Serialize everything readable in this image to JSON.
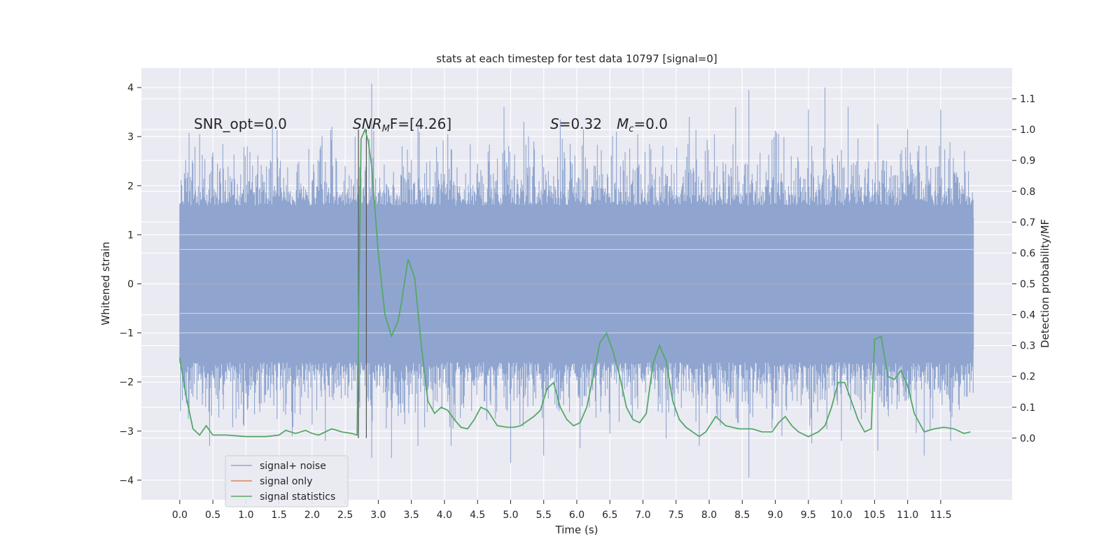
{
  "chart_data": {
    "type": "line",
    "title": "stats at each timestep for test data 10797 [signal=0]",
    "xlabel": "Time (s)",
    "ylabel": "Whitened strain",
    "y2label": "Detection probability/MF",
    "xlim": [
      -0.58,
      12.58
    ],
    "ylim": [
      -4.4,
      4.4
    ],
    "y2lim": [
      -0.2,
      1.2
    ],
    "xticks": [
      "0.0",
      "0.5",
      "1.0",
      "1.5",
      "2.0",
      "2.5",
      "3.0",
      "3.5",
      "4.0",
      "4.5",
      "5.0",
      "5.5",
      "6.0",
      "6.5",
      "7.0",
      "7.5",
      "8.0",
      "8.5",
      "9.0",
      "9.5",
      "10.0",
      "10.5",
      "11.0",
      "11.5"
    ],
    "yticks": [
      "4",
      "3",
      "2",
      "1",
      "0",
      "−1",
      "−2",
      "−3",
      "−4"
    ],
    "y2ticks": [
      "1.1",
      "1.0",
      "0.9",
      "0.8",
      "0.7",
      "0.6",
      "0.5",
      "0.4",
      "0.3",
      "0.2",
      "0.1",
      "0.0"
    ],
    "grid": true,
    "annotations": {
      "snr_opt": "SNR_opt=0.0",
      "snr_mf_main": "SNR",
      "snr_mf_sub": "M",
      "snr_mf_rest": "F=[4.26]",
      "s_main": "S",
      "s_rest": "=0.32",
      "mc_main": "M",
      "mc_sub": "c",
      "mc_rest": "=0.0"
    },
    "markers_x": [
      2.7,
      2.82
    ],
    "series": [
      {
        "name": "signal+ noise",
        "color": "#8fa5cf",
        "noise_duration": 12.0,
        "envelope": [
          1.35,
          -1.35
        ],
        "peaks": [
          [
            0.3,
            3.05
          ],
          [
            0.65,
            2.85
          ],
          [
            1.4,
            3.3
          ],
          [
            1.95,
            2.75
          ],
          [
            2.3,
            3.2
          ],
          [
            2.65,
            3.0
          ],
          [
            2.9,
            4.08
          ],
          [
            3.6,
            3.2
          ],
          [
            4.05,
            3.05
          ],
          [
            4.9,
            3.6
          ],
          [
            5.2,
            3.3
          ],
          [
            5.75,
            3.35
          ],
          [
            6.1,
            3.15
          ],
          [
            6.6,
            3.1
          ],
          [
            7.1,
            2.85
          ],
          [
            7.7,
            3.4
          ],
          [
            8.4,
            3.6
          ],
          [
            8.6,
            3.95
          ],
          [
            9.05,
            3.05
          ],
          [
            9.5,
            3.55
          ],
          [
            9.75,
            4.0
          ],
          [
            10.1,
            3.6
          ],
          [
            10.55,
            3.25
          ],
          [
            11.0,
            3.15
          ],
          [
            11.5,
            3.55
          ]
        ],
        "troughs": [
          [
            0.2,
            -2.3
          ],
          [
            0.45,
            -3.3
          ],
          [
            1.7,
            -3.1
          ],
          [
            2.2,
            -3.2
          ],
          [
            2.9,
            -3.55
          ],
          [
            3.2,
            -3.55
          ],
          [
            3.6,
            -3.3
          ],
          [
            4.1,
            -3.3
          ],
          [
            5.0,
            -3.65
          ],
          [
            5.5,
            -3.5
          ],
          [
            6.05,
            -3.35
          ],
          [
            6.5,
            -3.05
          ],
          [
            7.35,
            -3.15
          ],
          [
            7.85,
            -3.3
          ],
          [
            8.6,
            -3.95
          ],
          [
            9.1,
            -3.1
          ],
          [
            9.55,
            -3.25
          ],
          [
            10.0,
            -3.2
          ],
          [
            10.55,
            -3.4
          ],
          [
            11.25,
            -3.5
          ],
          [
            11.65,
            -3.2
          ]
        ]
      },
      {
        "name": "signal only",
        "color": "#dd8452",
        "x": [
          0,
          12
        ],
        "y": [
          0,
          0
        ]
      },
      {
        "name": "signal statistics",
        "color": "#55a868",
        "axis": "right",
        "x": [
          0.0,
          0.1,
          0.2,
          0.3,
          0.4,
          0.5,
          0.7,
          1.0,
          1.3,
          1.5,
          1.6,
          1.75,
          1.9,
          2.0,
          2.1,
          2.2,
          2.3,
          2.45,
          2.6,
          2.68,
          2.74,
          2.8,
          2.85,
          2.9,
          3.0,
          3.1,
          3.2,
          3.3,
          3.35,
          3.45,
          3.55,
          3.65,
          3.75,
          3.85,
          3.95,
          4.05,
          4.15,
          4.25,
          4.35,
          4.45,
          4.55,
          4.65,
          4.8,
          4.95,
          5.05,
          5.15,
          5.25,
          5.35,
          5.45,
          5.55,
          5.65,
          5.75,
          5.85,
          5.95,
          6.05,
          6.15,
          6.25,
          6.35,
          6.45,
          6.55,
          6.65,
          6.75,
          6.85,
          6.95,
          7.05,
          7.15,
          7.25,
          7.35,
          7.45,
          7.55,
          7.65,
          7.75,
          7.85,
          7.95,
          8.1,
          8.25,
          8.45,
          8.65,
          8.8,
          8.95,
          9.05,
          9.15,
          9.25,
          9.35,
          9.5,
          9.65,
          9.75,
          9.85,
          9.95,
          10.05,
          10.15,
          10.25,
          10.35,
          10.45,
          10.5,
          10.6,
          10.7,
          10.8,
          10.9,
          11.0,
          11.1,
          11.25,
          11.4,
          11.55,
          11.7,
          11.85,
          11.95
        ],
        "y": [
          0.26,
          0.13,
          0.03,
          0.01,
          0.04,
          0.01,
          0.01,
          0.005,
          0.005,
          0.01,
          0.025,
          0.015,
          0.025,
          0.015,
          0.01,
          0.02,
          0.03,
          0.02,
          0.015,
          0.01,
          0.97,
          1.0,
          0.96,
          0.88,
          0.6,
          0.4,
          0.33,
          0.38,
          0.44,
          0.58,
          0.52,
          0.3,
          0.12,
          0.08,
          0.1,
          0.09,
          0.06,
          0.035,
          0.03,
          0.06,
          0.1,
          0.09,
          0.04,
          0.035,
          0.035,
          0.04,
          0.055,
          0.07,
          0.09,
          0.16,
          0.18,
          0.1,
          0.06,
          0.04,
          0.05,
          0.1,
          0.2,
          0.31,
          0.34,
          0.28,
          0.2,
          0.1,
          0.06,
          0.05,
          0.08,
          0.24,
          0.3,
          0.25,
          0.12,
          0.06,
          0.035,
          0.02,
          0.005,
          0.02,
          0.07,
          0.04,
          0.03,
          0.03,
          0.02,
          0.02,
          0.05,
          0.07,
          0.04,
          0.02,
          0.005,
          0.02,
          0.04,
          0.1,
          0.18,
          0.18,
          0.12,
          0.06,
          0.02,
          0.03,
          0.32,
          0.33,
          0.2,
          0.19,
          0.22,
          0.17,
          0.08,
          0.02,
          0.03,
          0.035,
          0.03,
          0.015,
          0.02
        ]
      }
    ],
    "legend": {
      "placement": "lower-left"
    }
  }
}
